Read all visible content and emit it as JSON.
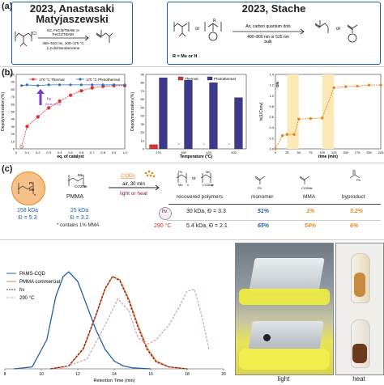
{
  "panel_a": {
    "letter": "(a)",
    "left_box": {
      "title_line1": "2023, Anastasaki",
      "title_line2": "Matyjaszewski",
      "conditions": [
        "N2, FeCl3/TBABr or",
        "FeCl2/TBABr",
        "460–510 nm, 100–170 °C",
        "1,2-dichlorobenzene"
      ],
      "atom_label": "Cl"
    },
    "right_box": {
      "title": "2023, Stache",
      "or_label": "or",
      "condition_top": "Air, carbon quantum dots",
      "condition_bottom": "400–800 nm or 525 nm",
      "condition_bulk": "bulk",
      "r_note": "R = Me or H",
      "product_or": "or",
      "r_label": "R"
    }
  },
  "panel_b": {
    "letter": "(b)",
    "chart1": {
      "legend": [
        "170 °C Thermal",
        "170 °C Photothermal"
      ],
      "ylabel": "Depolymerization (%)",
      "xlabel": "eq. of catalyst",
      "hv_label": "hν",
      "hv_sub": "(blue LED)",
      "yticks": [
        "0",
        "10",
        "20",
        "30",
        "40",
        "50",
        "60",
        "70",
        "80",
        "90",
        "100"
      ],
      "xticks": [
        "0",
        "0.1",
        "0.2",
        "0.3",
        "0.4",
        "0.5",
        "0.6",
        "0.7",
        "0.8",
        "0.9",
        "1.0"
      ]
    },
    "chart2": {
      "legend": [
        "Thermal",
        "Photothermal"
      ],
      "ylabel": "Depolymerization (%)",
      "xlabel": "Temperature (°C)",
      "categories": [
        "170",
        "150",
        "120",
        "100"
      ],
      "yticks": [
        "0",
        "10",
        "20",
        "30",
        "40",
        "50",
        "60",
        "70",
        "80",
        "90"
      ],
      "star": "*"
    },
    "chart3": {
      "ylabel": "ln(1/Conv)",
      "xlabel": "time (min)",
      "on_label": "ON",
      "xticks": [
        "0",
        "25",
        "50",
        "75",
        "100",
        "125",
        "150",
        "175",
        "200",
        "225"
      ],
      "yticks": [
        "0.0",
        "0.2",
        "0.4",
        "0.6",
        "0.8",
        "1.0",
        "1.2",
        "1.4"
      ]
    }
  },
  "chart_data": [
    {
      "type": "scatter",
      "ylabel": "Depolymerization (%)",
      "xlabel": "eq. of catalyst",
      "ylim": [
        0,
        100
      ],
      "xlim": [
        0,
        1.0
      ],
      "series": [
        {
          "name": "170 °C Thermal",
          "x": [
            0.05,
            0.1,
            0.2,
            0.3,
            0.4,
            0.5,
            0.6,
            0.7,
            0.8,
            0.9,
            1.0
          ],
          "y": [
            3,
            30,
            43,
            55,
            64,
            72,
            78,
            82,
            84,
            85,
            85
          ]
        },
        {
          "name": "170 °C Photothermal",
          "x": [
            0.05,
            0.1,
            0.2,
            0.3,
            0.4,
            0.5,
            0.6,
            0.7,
            0.8,
            0.9,
            1.0
          ],
          "y": [
            85,
            86,
            85,
            86,
            86,
            86,
            86,
            86,
            86,
            86,
            86
          ]
        }
      ],
      "color_thermal": "#e03030",
      "color_photo": "#3070c0"
    },
    {
      "type": "bar",
      "categories": [
        "170",
        "150",
        "120",
        "100"
      ],
      "xlabel": "Temperature (°C)",
      "ylabel": "Depolymerization (%)",
      "ylim": [
        0,
        90
      ],
      "series": [
        {
          "name": "Thermal",
          "values": [
            5,
            0,
            0,
            0
          ]
        },
        {
          "name": "Photothermal",
          "values": [
            86,
            83,
            80,
            62
          ]
        }
      ],
      "color_thermal": "#e03030",
      "color_photo": "#3b3a8c"
    },
    {
      "type": "line",
      "xlabel": "time (min)",
      "ylabel": "ln(1/Conv)",
      "xlim": [
        0,
        225
      ],
      "ylim": [
        0,
        1.4
      ],
      "x": [
        0,
        15,
        25,
        40,
        50,
        75,
        100,
        125,
        150,
        175,
        200,
        225
      ],
      "y": [
        0.0,
        0.25,
        0.27,
        0.27,
        0.56,
        0.57,
        0.58,
        1.15,
        1.17,
        1.18,
        1.2,
        1.2
      ],
      "color": "#e8861e",
      "shaded_x_ranges": [
        [
          25,
          50
        ],
        [
          100,
          125
        ]
      ],
      "shade_color": "#fbeab8"
    },
    {
      "type": "line",
      "xlabel": "Retention Time (min)",
      "xlim": [
        8,
        20
      ],
      "xticks": [
        "8",
        "10",
        "12",
        "14",
        "16",
        "18",
        "20"
      ],
      "series": [
        {
          "name": "PAMS-CQD",
          "color": "#1f5fa8",
          "x": [
            8.5,
            9.5,
            10.3,
            10.8,
            11.2,
            11.5,
            12.0,
            12.5,
            13.0,
            13.5,
            14.0,
            14.5,
            15.0,
            16.0
          ],
          "y": [
            0,
            0.02,
            0.3,
            0.75,
            0.95,
            1.0,
            0.9,
            0.65,
            0.4,
            0.2,
            0.08,
            0.03,
            0.01,
            0
          ]
        },
        {
          "name": "PMMA commercial",
          "color": "#e8861e",
          "x": [
            10.5,
            11.5,
            12.3,
            13.0,
            13.5,
            13.9,
            14.3,
            14.8,
            15.3,
            15.8,
            16.3,
            17.0,
            18.0
          ],
          "y": [
            0,
            0.03,
            0.2,
            0.55,
            0.82,
            0.95,
            0.92,
            0.72,
            0.45,
            0.22,
            0.08,
            0.02,
            0
          ]
        },
        {
          "name": "hν",
          "color": "#8b1a2e",
          "x": [
            10.5,
            11.5,
            12.3,
            13.0,
            13.5,
            13.9,
            14.3,
            14.8,
            15.3,
            15.8,
            16.3,
            17.0,
            18.0
          ],
          "y": [
            0,
            0.03,
            0.21,
            0.56,
            0.83,
            0.95,
            0.91,
            0.7,
            0.43,
            0.2,
            0.07,
            0.02,
            0
          ]
        },
        {
          "name": "290 °C",
          "color": "#d8a6b4",
          "x": [
            11.0,
            12.5,
            13.5,
            14.2,
            14.8,
            15.3,
            15.8,
            16.3,
            17.0,
            17.6,
            18.0,
            18.4,
            18.8,
            19.2
          ],
          "y": [
            0,
            0.1,
            0.45,
            0.72,
            0.6,
            0.32,
            0.25,
            0.3,
            0.45,
            0.65,
            0.8,
            0.82,
            0.55,
            0.2
          ]
        }
      ]
    }
  ],
  "panel_c": {
    "letter": "(c)",
    "pams": {
      "mw": "158 kDa",
      "d": "Đ = 5.3",
      "sub_ph": "Ph",
      "sub_me": "Me",
      "n": "n"
    },
    "pmma": {
      "name": "PMMA",
      "mw": "25 kDa",
      "d": "Đ = 3.2",
      "note": "* contains 1% MMA",
      "sub_me": "Me",
      "sub_co2me": "CO2Me",
      "n": "n"
    },
    "arrow": {
      "cqds": "CQDs",
      "air": "air, 30 min",
      "light_heat": "light or heat"
    },
    "headers": [
      "recovered polymers",
      "monomer",
      "MMA",
      "byproduct"
    ],
    "rows": [
      {
        "cond": "hν",
        "polymer": "30 kDa, Đ = 3.3",
        "monomer": "51%",
        "mma": "1%",
        "byproduct": "3.2%"
      },
      {
        "cond": "290 °C",
        "polymer": "5.4 kDa, Đ = 2.1",
        "monomer": "65%",
        "mma": "54%",
        "byproduct": "6%"
      }
    ],
    "struct_labels": {
      "or": "or",
      "ph": "Ph",
      "me": "Me",
      "co2me": "CO2Me",
      "n": "n",
      "p": "p"
    }
  },
  "gpc": {
    "legend": [
      "PAMS-CQD",
      "PMMA commercial",
      "hν",
      "290 °C"
    ],
    "xlabel": "Retention Time (min)",
    "xticks": [
      "8",
      "10",
      "12",
      "14",
      "16",
      "18",
      "20"
    ]
  },
  "photos": {
    "light_label": "light",
    "heat_label": "heat"
  },
  "colors": {
    "blue": "#1f5fa8",
    "orange": "#e8861e",
    "red": "#d62a2a",
    "navy": "#3b3a8c"
  }
}
